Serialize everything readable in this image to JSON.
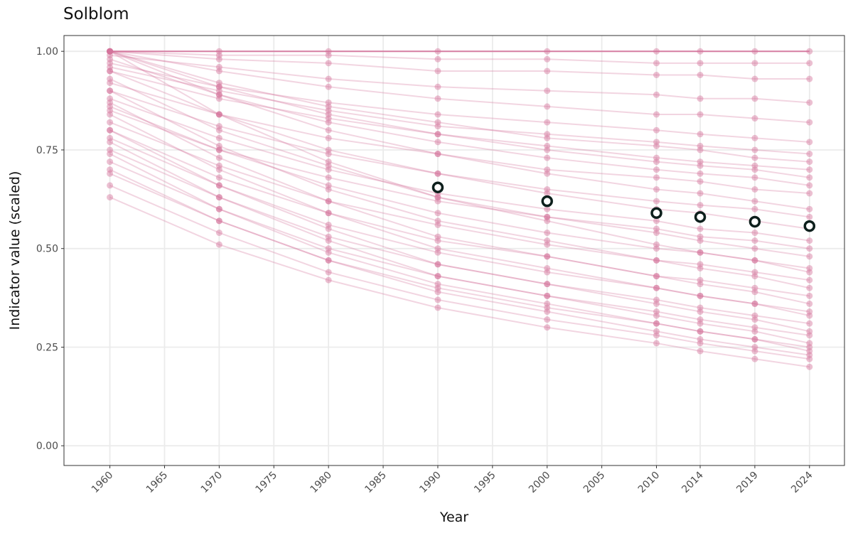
{
  "chart_data": {
    "type": "line",
    "title": "Solblom",
    "xlabel": "Year",
    "ylabel": "Indicator value (scaled)",
    "ylim": [
      -0.05,
      1.04
    ],
    "xlim": [
      1955.8,
      2027.2
    ],
    "grid": true,
    "legend": "none",
    "x_ticks": [
      "1960",
      "1965",
      "1970",
      "1975",
      "1980",
      "1985",
      "1990",
      "1995",
      "2000",
      "2005",
      "2010",
      "2014",
      "2019",
      "2024"
    ],
    "y_ticks": [
      "0.00",
      "0.25",
      "0.50",
      "0.75",
      "1.00"
    ],
    "x": [
      1960,
      1970,
      1980,
      1990,
      2000,
      2010,
      2014,
      2019,
      2024
    ],
    "series_color": "#d4739b",
    "mean_color": "#0d1f1c",
    "series": [
      [
        1,
        1,
        1,
        1,
        1,
        1,
        1,
        1,
        1
      ],
      [
        1,
        0.99,
        0.99,
        0.98,
        0.98,
        0.97,
        0.97,
        0.97,
        0.97
      ],
      [
        1,
        0.98,
        0.97,
        0.95,
        0.95,
        0.94,
        0.94,
        0.93,
        0.93
      ],
      [
        0.99,
        0.96,
        0.93,
        0.91,
        0.9,
        0.89,
        0.88,
        0.88,
        0.87
      ],
      [
        1,
        0.95,
        0.91,
        0.88,
        0.86,
        0.84,
        0.84,
        0.83,
        0.82
      ],
      [
        0.97,
        0.91,
        0.87,
        0.84,
        0.82,
        0.8,
        0.79,
        0.78,
        0.77
      ],
      [
        1,
        0.92,
        0.86,
        0.82,
        0.78,
        0.76,
        0.75,
        0.73,
        0.72
      ],
      [
        0.95,
        0.88,
        0.83,
        0.79,
        0.76,
        0.73,
        0.72,
        0.71,
        0.7
      ],
      [
        0.98,
        0.89,
        0.82,
        0.77,
        0.73,
        0.7,
        0.69,
        0.68,
        0.66
      ],
      [
        0.92,
        0.84,
        0.78,
        0.74,
        0.7,
        0.68,
        0.67,
        0.65,
        0.64
      ],
      [
        1,
        0.89,
        0.8,
        0.74,
        0.69,
        0.65,
        0.64,
        0.62,
        0.6
      ],
      [
        0.9,
        0.81,
        0.74,
        0.69,
        0.65,
        0.62,
        0.61,
        0.6,
        0.58
      ],
      [
        0.95,
        0.84,
        0.75,
        0.69,
        0.64,
        0.6,
        0.59,
        0.57,
        0.55
      ],
      [
        0.88,
        0.78,
        0.7,
        0.64,
        0.6,
        0.57,
        0.55,
        0.54,
        0.52
      ],
      [
        0.93,
        0.8,
        0.71,
        0.63,
        0.58,
        0.54,
        0.52,
        0.5,
        0.48
      ],
      [
        0.86,
        0.75,
        0.66,
        0.59,
        0.54,
        0.5,
        0.49,
        0.47,
        0.45
      ],
      [
        1,
        0.84,
        0.72,
        0.63,
        0.57,
        0.51,
        0.49,
        0.47,
        0.44
      ],
      [
        0.82,
        0.71,
        0.62,
        0.56,
        0.51,
        0.47,
        0.46,
        0.44,
        0.42
      ],
      [
        0.9,
        0.76,
        0.65,
        0.57,
        0.52,
        0.47,
        0.45,
        0.43,
        0.4
      ],
      [
        0.8,
        0.68,
        0.59,
        0.52,
        0.48,
        0.43,
        0.42,
        0.4,
        0.38
      ],
      [
        0.87,
        0.73,
        0.62,
        0.53,
        0.48,
        0.43,
        0.41,
        0.39,
        0.36
      ],
      [
        0.78,
        0.66,
        0.56,
        0.49,
        0.44,
        0.4,
        0.38,
        0.36,
        0.34
      ],
      [
        0.84,
        0.7,
        0.59,
        0.5,
        0.45,
        0.4,
        0.38,
        0.36,
        0.33
      ],
      [
        0.75,
        0.63,
        0.53,
        0.46,
        0.41,
        0.37,
        0.35,
        0.33,
        0.31
      ],
      [
        0.8,
        0.66,
        0.55,
        0.46,
        0.41,
        0.36,
        0.34,
        0.32,
        0.29
      ],
      [
        0.72,
        0.6,
        0.5,
        0.43,
        0.38,
        0.34,
        0.32,
        0.3,
        0.28
      ],
      [
        0.77,
        0.63,
        0.52,
        0.43,
        0.38,
        0.33,
        0.31,
        0.29,
        0.26
      ],
      [
        0.69,
        0.57,
        0.47,
        0.4,
        0.35,
        0.31,
        0.29,
        0.27,
        0.25
      ],
      [
        0.74,
        0.6,
        0.49,
        0.41,
        0.36,
        0.31,
        0.29,
        0.27,
        0.24
      ],
      [
        0.66,
        0.54,
        0.44,
        0.37,
        0.32,
        0.28,
        0.26,
        0.24,
        0.22
      ],
      [
        0.7,
        0.57,
        0.47,
        0.39,
        0.34,
        0.29,
        0.27,
        0.25,
        0.23
      ],
      [
        0.63,
        0.51,
        0.42,
        0.35,
        0.3,
        0.26,
        0.24,
        0.22,
        0.2
      ],
      [
        1,
        0.91,
        0.84,
        0.79,
        0.75,
        0.72,
        0.71,
        0.7,
        0.68
      ],
      [
        0.96,
        0.9,
        0.85,
        0.81,
        0.79,
        0.77,
        0.76,
        0.75,
        0.74
      ],
      [
        0.85,
        0.75,
        0.68,
        0.62,
        0.58,
        0.55,
        0.53,
        0.52,
        0.5
      ]
    ],
    "mean": [
      null,
      null,
      null,
      0.655,
      0.62,
      0.59,
      0.58,
      0.568,
      0.557
    ]
  }
}
